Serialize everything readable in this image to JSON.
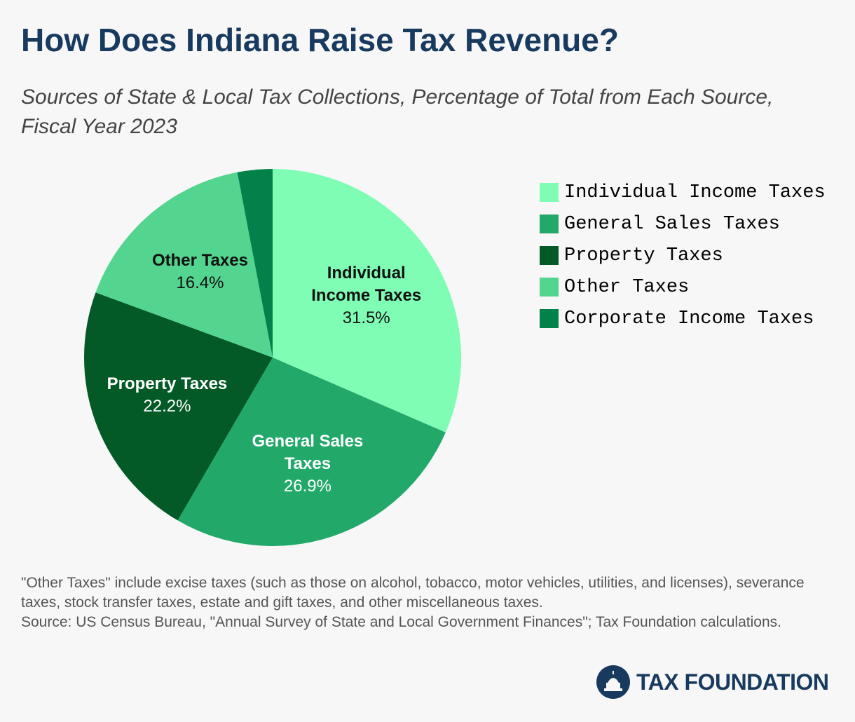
{
  "chart_data": {
    "type": "pie",
    "title": "How Does Indiana Raise Tax Revenue?",
    "subtitle": "Sources of State & Local Tax Collections, Percentage of Total from Each Source, Fiscal Year 2023",
    "categories": [
      "Individual Income Taxes",
      "General Sales Taxes",
      "Property Taxes",
      "Other Taxes",
      "Corporate Income Taxes"
    ],
    "values": [
      31.5,
      26.9,
      22.2,
      16.4,
      3.0
    ],
    "value_labels": [
      "31.5%",
      "26.9%",
      "22.2%",
      "16.4%",
      null
    ],
    "colors": [
      "#80fdb5",
      "#22a96a",
      "#035a26",
      "#53d48f",
      "#02824a"
    ],
    "legend": "right",
    "notes": [
      "\"Other Taxes\" include excise taxes (such as those on alcohol, tobacco, motor vehicles, utilities, and licenses), severance taxes, stock transfer taxes, estate and gift taxes, and other miscellaneous taxes.",
      "Source: US Census Bureau, \"Annual Survey of State and Local Government Finances\"; Tax Foundation calculations."
    ],
    "logo": "TAX FOUNDATION"
  }
}
